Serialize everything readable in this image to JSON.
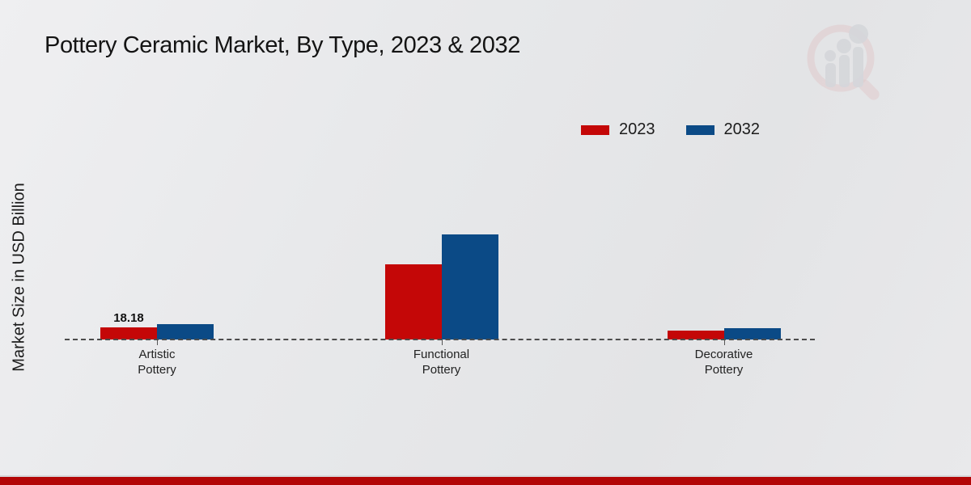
{
  "page": {
    "title": "Pottery Ceramic Market, By Type, 2023 & 2032",
    "ylabel": "Market Size in USD Billion"
  },
  "colors": {
    "series_2023": "#c40707",
    "series_2032": "#0b4a86",
    "footer_band": "#b30606",
    "baseline": "#4c4c4c"
  },
  "legend": {
    "items": [
      {
        "label": "2023",
        "color": "#c40707"
      },
      {
        "label": "2032",
        "color": "#0b4a86"
      }
    ]
  },
  "chart_data": {
    "type": "bar",
    "title": "Pottery Ceramic Market, By Type, 2023 & 2032",
    "xlabel": "",
    "ylabel": "Market Size in USD Billion",
    "categories": [
      "Artistic Pottery",
      "Functional Pottery",
      "Decorative Pottery"
    ],
    "series": [
      {
        "name": "2023",
        "color": "#c40707",
        "values": [
          18.18,
          112.5,
          13.5
        ]
      },
      {
        "name": "2032",
        "color": "#0b4a86",
        "values": [
          22.8,
          157.5,
          17.0
        ]
      }
    ],
    "annotations": [
      {
        "text": "18.18",
        "category_index": 0,
        "series_index": 0
      }
    ],
    "ylim": [
      0,
      175
    ],
    "grid": false,
    "legend_position": "top-right",
    "baseline_style": "dashed",
    "y_axis_ticks_visible": false
  }
}
